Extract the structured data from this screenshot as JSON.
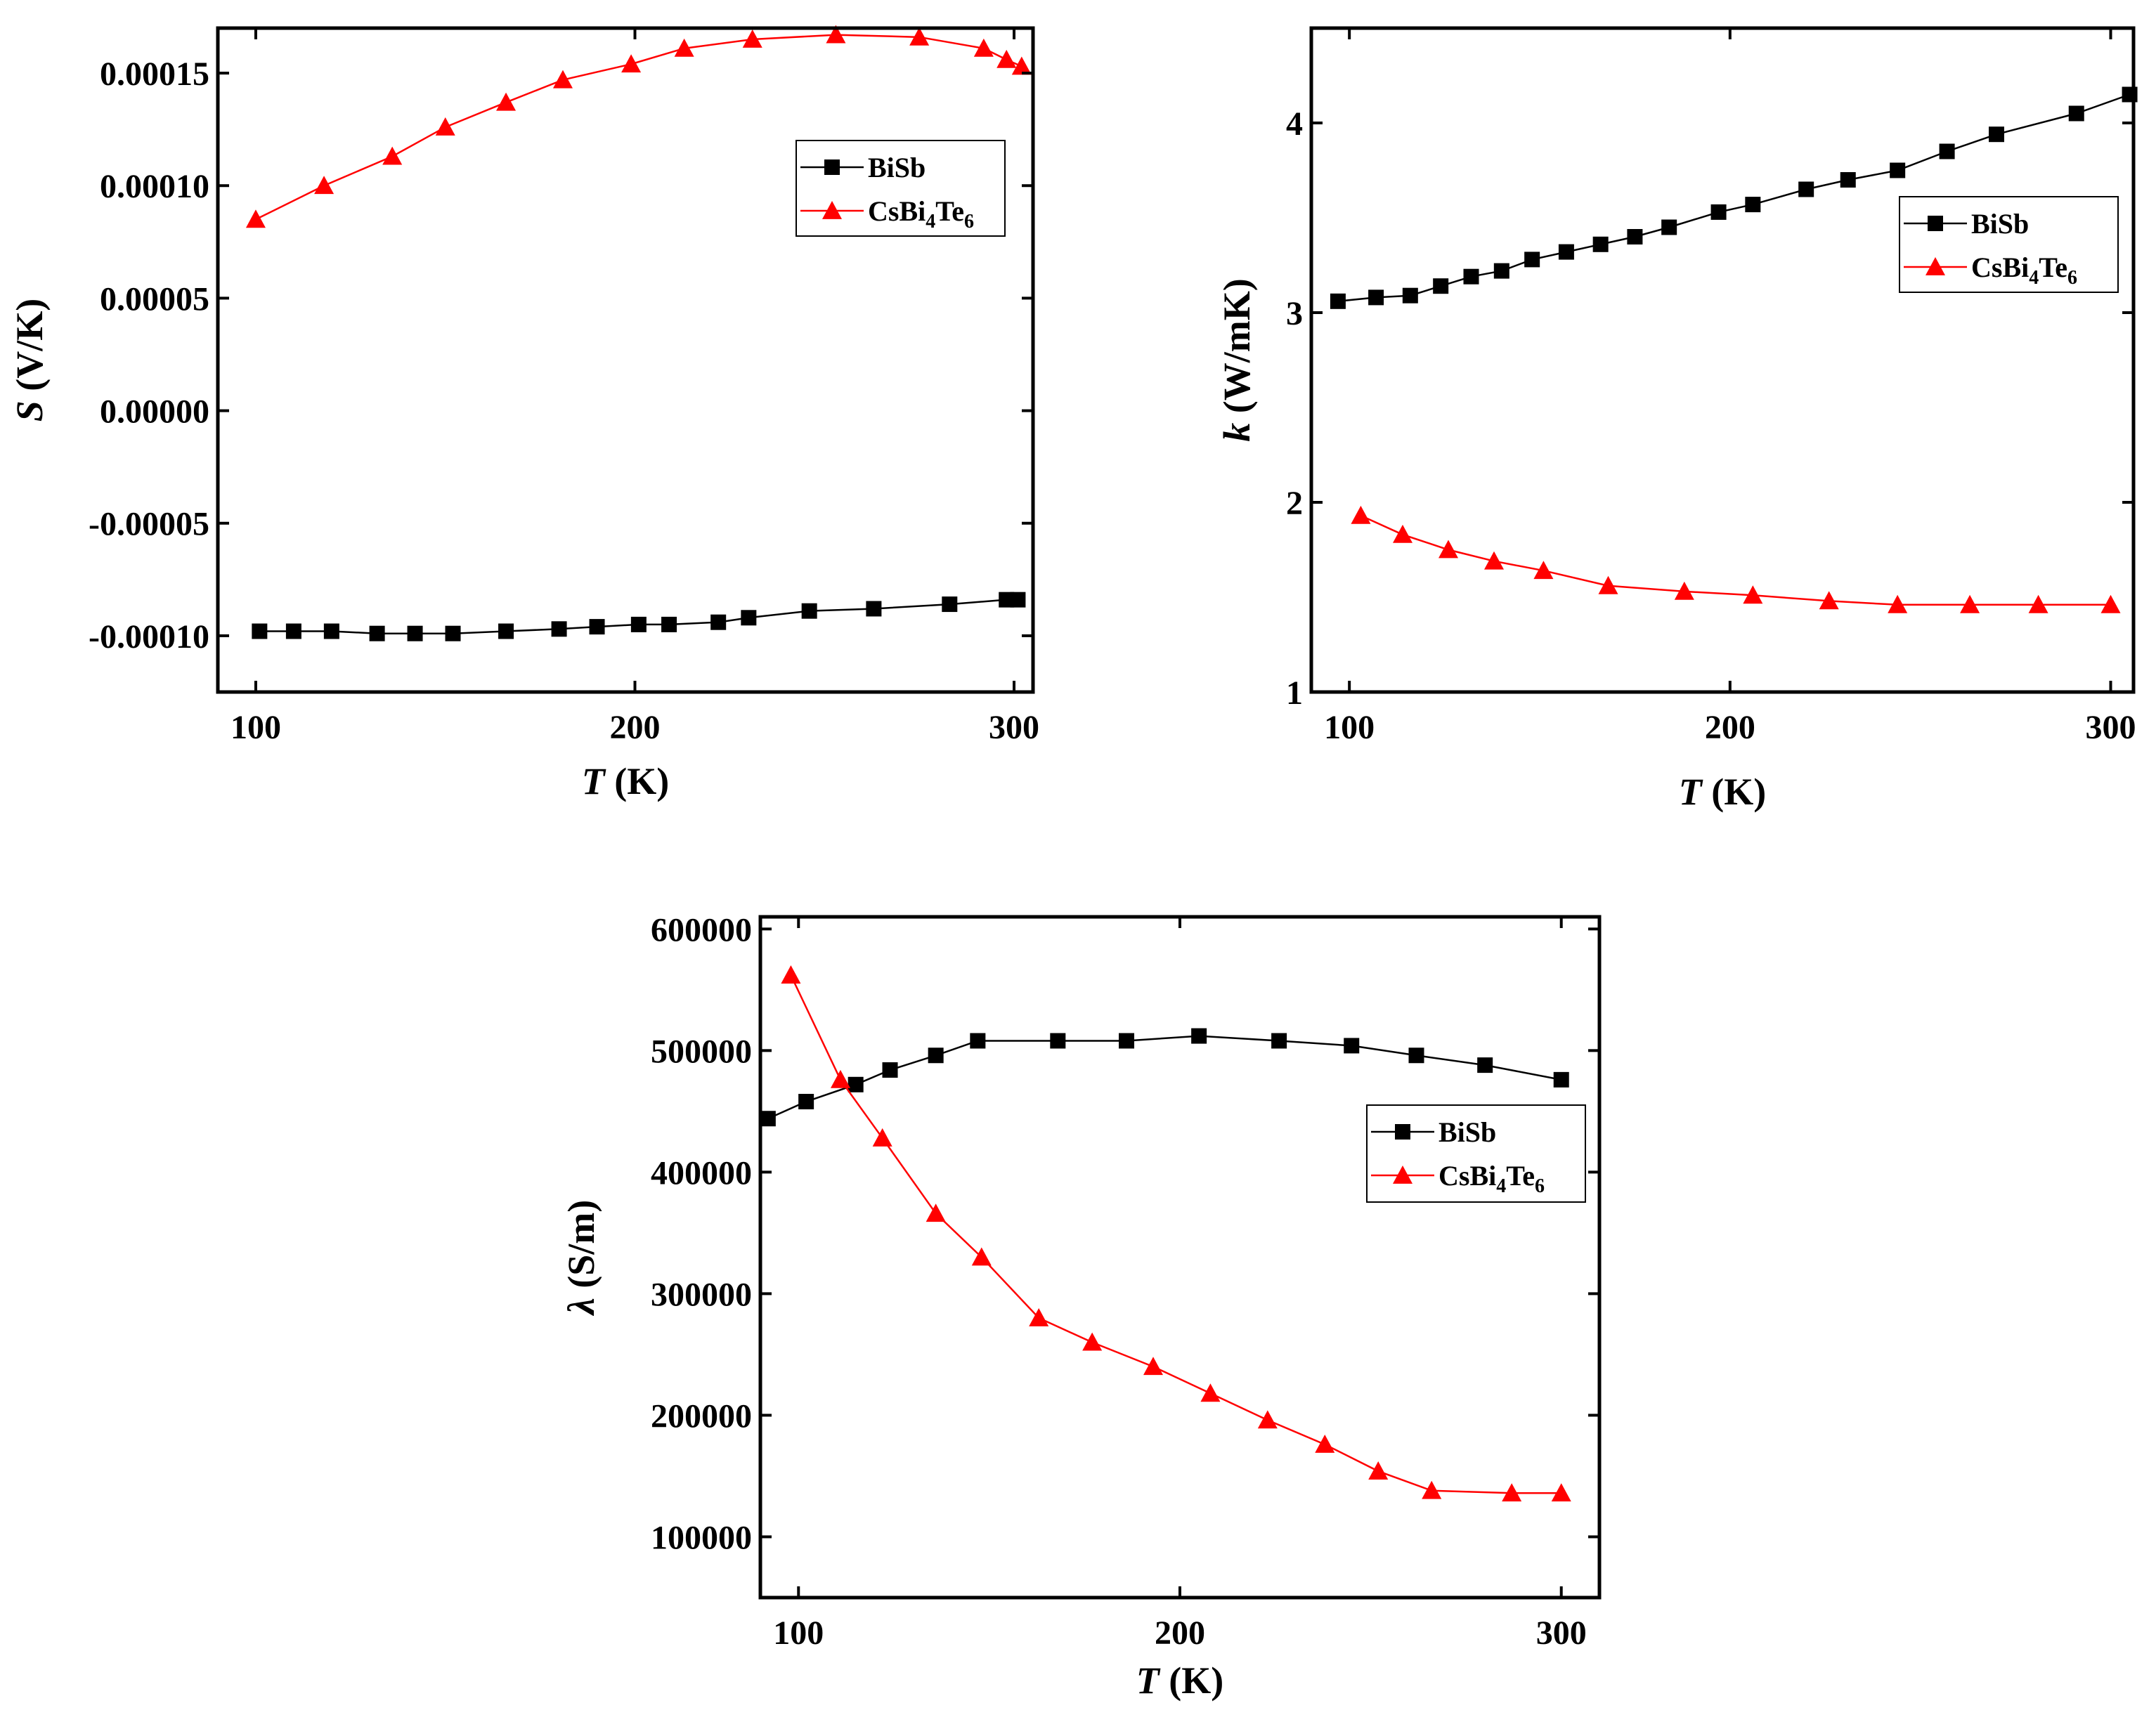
{
  "colors": {
    "series_a": "#000000",
    "series_b": "#ff0000",
    "frame": "#000000",
    "background": "#ffffff"
  },
  "chart_data": [
    {
      "id": "seebeck",
      "type": "line",
      "xlabel_var": "T",
      "xlabel_unit": " (K)",
      "ylabel_var": "S",
      "ylabel_unit": " (V/K)",
      "xlim": [
        90,
        305
      ],
      "ylim": [
        -0.000125,
        0.00017
      ],
      "xticks": [
        100,
        200,
        300
      ],
      "yticks": [
        -0.0001,
        -5e-05,
        0,
        5e-05,
        0.0001,
        0.00015
      ],
      "ytick_labels": [
        "-0.00010",
        "-0.00005",
        "0.00000",
        "0.00005",
        "0.00010",
        "0.00015"
      ],
      "legend_position": "upper-right",
      "series": [
        {
          "name": "BiSb",
          "marker": "square",
          "color": "#000000",
          "x": [
            101,
            110,
            120,
            132,
            142,
            152,
            166,
            180,
            190,
            201,
            209,
            222,
            230,
            246,
            263,
            283,
            298,
            301
          ],
          "y": [
            -9.8e-05,
            -9.8e-05,
            -9.8e-05,
            -9.9e-05,
            -9.9e-05,
            -9.9e-05,
            -9.8e-05,
            -9.7e-05,
            -9.6e-05,
            -9.5e-05,
            -9.5e-05,
            -9.4e-05,
            -9.2e-05,
            -8.9e-05,
            -8.8e-05,
            -8.6e-05,
            -8.4e-05,
            -8.4e-05
          ]
        },
        {
          "name": "CsBi4Te6",
          "name_parts": [
            "CsBi",
            "4",
            "Te",
            "6"
          ],
          "marker": "triangle",
          "color": "#ff0000",
          "x": [
            100,
            118,
            136,
            150,
            166,
            181,
            199,
            213,
            231,
            253,
            275,
            292,
            298,
            302
          ],
          "y": [
            8.5e-05,
            0.0001,
            0.000113,
            0.000126,
            0.000137,
            0.000147,
            0.000154,
            0.000161,
            0.000165,
            0.000167,
            0.000166,
            0.000161,
            0.000156,
            0.000153
          ]
        }
      ]
    },
    {
      "id": "thermal",
      "type": "line",
      "xlabel_var": "T",
      "xlabel_unit": " (K)",
      "ylabel_var": "k",
      "ylabel_unit": " (W/mK)",
      "xlim": [
        90,
        306
      ],
      "ylim": [
        1,
        4.5
      ],
      "xticks": [
        100,
        200,
        300
      ],
      "yticks": [
        1,
        2,
        3,
        4
      ],
      "ytick_labels": [
        "1",
        "2",
        "3",
        "4"
      ],
      "legend_position": "right",
      "series": [
        {
          "name": "BiSb",
          "marker": "square",
          "color": "#000000",
          "x": [
            97,
            107,
            116,
            124,
            132,
            140,
            148,
            157,
            166,
            175,
            184,
            197,
            206,
            220,
            231,
            244,
            257,
            270,
            291,
            305
          ],
          "y": [
            3.06,
            3.08,
            3.09,
            3.14,
            3.19,
            3.22,
            3.28,
            3.32,
            3.36,
            3.4,
            3.45,
            3.53,
            3.57,
            3.65,
            3.7,
            3.75,
            3.85,
            3.94,
            4.05,
            4.15
          ]
        },
        {
          "name": "CsBi4Te6",
          "name_parts": [
            "CsBi",
            "4",
            "Te",
            "6"
          ],
          "marker": "triangle",
          "color": "#ff0000",
          "x": [
            103,
            114,
            126,
            138,
            151,
            168,
            188,
            206,
            226,
            244,
            263,
            281,
            300
          ],
          "y": [
            1.93,
            1.83,
            1.75,
            1.69,
            1.64,
            1.56,
            1.53,
            1.51,
            1.48,
            1.46,
            1.46,
            1.46,
            1.46
          ]
        }
      ]
    },
    {
      "id": "conductivity",
      "type": "line",
      "xlabel_var": "T",
      "xlabel_unit": " (K)",
      "ylabel_var": "λ",
      "ylabel_unit": " (S/m)",
      "xlim": [
        90,
        310
      ],
      "ylim": [
        50000,
        610000
      ],
      "xticks": [
        100,
        200,
        300
      ],
      "yticks": [
        100000,
        200000,
        300000,
        400000,
        500000,
        600000
      ],
      "ytick_labels": [
        "100000",
        "200000",
        "300000",
        "400000",
        "500000",
        "600000"
      ],
      "legend_position": "right",
      "series": [
        {
          "name": "BiSb",
          "marker": "square",
          "color": "#000000",
          "x": [
            92,
            102,
            115,
            124,
            136,
            147,
            168,
            186,
            205,
            226,
            245,
            262,
            280,
            300
          ],
          "y": [
            444000,
            458000,
            472000,
            484000,
            496000,
            508000,
            508000,
            508000,
            512000,
            508000,
            504000,
            496000,
            488000,
            476000
          ]
        },
        {
          "name": "CsBi4Te6",
          "name_parts": [
            "CsBi",
            "4",
            "Te",
            "6"
          ],
          "marker": "triangle",
          "color": "#ff0000",
          "x": [
            98,
            111,
            122,
            136,
            148,
            163,
            177,
            193,
            208,
            223,
            238,
            252,
            266,
            287,
            300
          ],
          "y": [
            562000,
            476000,
            428000,
            366000,
            330000,
            280000,
            260000,
            240000,
            218000,
            196000,
            176000,
            154000,
            138000,
            136000,
            136000
          ]
        }
      ]
    }
  ]
}
